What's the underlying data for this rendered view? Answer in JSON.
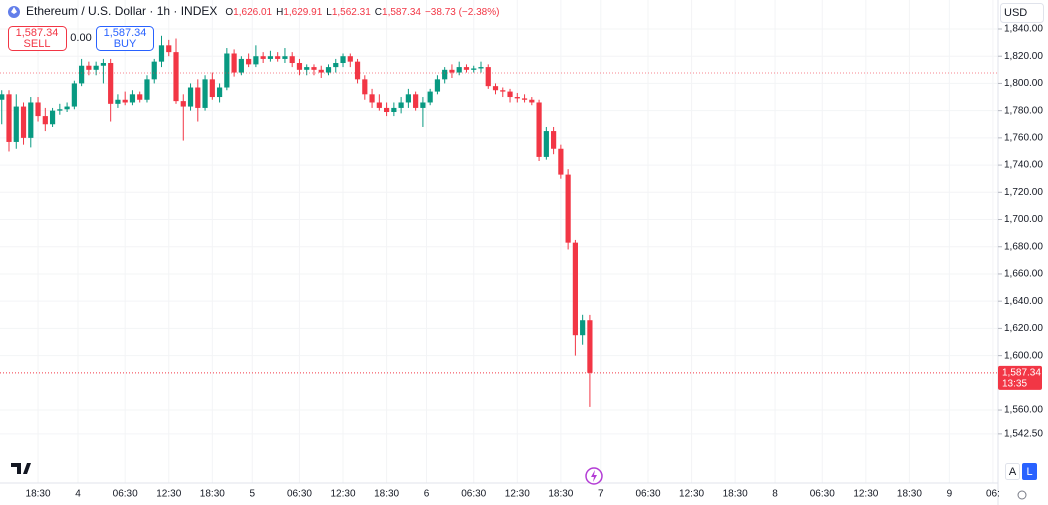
{
  "header": {
    "symbol": "Ethereum / U.S. Dollar · 1h · INDEX",
    "o_label": "O",
    "open": "1,626.01",
    "h_label": "H",
    "high": "1,629.91",
    "l_label": "L",
    "low": "1,562.31",
    "c_label": "C",
    "close": "1,587.34",
    "change": "−38.73 (−2.38%)"
  },
  "trade": {
    "sell_price": "1,587.34",
    "sell": "SELL",
    "spread": "0.00",
    "buy_price": "1,587.34",
    "buy": "BUY"
  },
  "currency": "USD",
  "scale_buttons": [
    "A",
    "L"
  ],
  "chart_data": {
    "type": "candlestick",
    "up_color": "#089981",
    "down_color": "#f23645",
    "grid": true,
    "open": [
      1788,
      1792,
      1757,
      1783,
      1760,
      1786,
      1776,
      1770,
      1780,
      1781,
      1783,
      1800,
      1813,
      1810,
      1813,
      1815,
      1785,
      1788,
      1786,
      1792,
      1788,
      1803,
      1816,
      1828,
      1823,
      1787,
      1783,
      1797,
      1782,
      1803,
      1790,
      1797,
      1822,
      1808,
      1818,
      1814,
      1820,
      1818,
      1820,
      1818,
      1820,
      1815,
      1810,
      1812,
      1810,
      1808,
      1812,
      1815,
      1820,
      1816,
      1803,
      1792,
      1786,
      1782,
      1779,
      1782,
      1786,
      1792,
      1782,
      1786,
      1794,
      1803,
      1810,
      1808,
      1812,
      1810,
      1811,
      1812,
      1798,
      1795,
      1794,
      1790,
      1789,
      1788,
      1786,
      1746,
      1765,
      1752,
      1733,
      1683,
      1615,
      1626.01
    ],
    "high": [
      1795,
      1795,
      1792,
      1786,
      1790,
      1790,
      1782,
      1782,
      1785,
      1786,
      1802,
      1818,
      1816,
      1816,
      1818,
      1818,
      1792,
      1794,
      1795,
      1794,
      1806,
      1818,
      1835,
      1832,
      1833,
      1792,
      1800,
      1803,
      1806,
      1808,
      1800,
      1826,
      1825,
      1820,
      1822,
      1828,
      1823,
      1824,
      1823,
      1826,
      1823,
      1818,
      1814,
      1814,
      1813,
      1814,
      1818,
      1822,
      1822,
      1818,
      1806,
      1796,
      1792,
      1786,
      1786,
      1790,
      1796,
      1794,
      1790,
      1796,
      1806,
      1812,
      1814,
      1816,
      1814,
      1813,
      1816,
      1814,
      1800,
      1797,
      1796,
      1793,
      1792,
      1790,
      1788,
      1768,
      1768,
      1755,
      1737,
      1685,
      1630,
      1629.91
    ],
    "low": [
      1770,
      1750,
      1752,
      1755,
      1753,
      1772,
      1765,
      1768,
      1777,
      1779,
      1781,
      1798,
      1806,
      1806,
      1800,
      1772,
      1782,
      1784,
      1784,
      1786,
      1786,
      1800,
      1812,
      1820,
      1785,
      1758,
      1780,
      1772,
      1780,
      1788,
      1786,
      1795,
      1805,
      1806,
      1812,
      1812,
      1815,
      1816,
      1816,
      1815,
      1812,
      1806,
      1806,
      1806,
      1804,
      1806,
      1808,
      1812,
      1812,
      1800,
      1788,
      1782,
      1780,
      1776,
      1776,
      1778,
      1782,
      1780,
      1768,
      1784,
      1792,
      1800,
      1804,
      1806,
      1808,
      1808,
      1808,
      1796,
      1792,
      1790,
      1786,
      1786,
      1786,
      1784,
      1743,
      1744,
      1748,
      1730,
      1678,
      1600,
      1608,
      1562.31
    ],
    "close": [
      1792,
      1757,
      1783,
      1760,
      1786,
      1776,
      1770,
      1780,
      1781,
      1783,
      1800,
      1813,
      1810,
      1813,
      1815,
      1785,
      1788,
      1786,
      1792,
      1788,
      1803,
      1816,
      1828,
      1823,
      1787,
      1783,
      1797,
      1782,
      1803,
      1790,
      1797,
      1822,
      1808,
      1818,
      1814,
      1820,
      1818,
      1820,
      1818,
      1820,
      1815,
      1810,
      1812,
      1810,
      1808,
      1812,
      1815,
      1820,
      1816,
      1803,
      1792,
      1786,
      1782,
      1779,
      1782,
      1786,
      1792,
      1782,
      1786,
      1794,
      1803,
      1810,
      1808,
      1812,
      1810,
      1811,
      1812,
      1798,
      1795,
      1794,
      1790,
      1789,
      1788,
      1786,
      1746,
      1765,
      1752,
      1733,
      1683,
      1615,
      1626.01,
      1587.34
    ],
    "xlim": [
      -0.24,
      137.2
    ],
    "xticks": [
      {
        "value": 5,
        "label": "18:30"
      },
      {
        "value": 10.5,
        "label": "4"
      },
      {
        "value": 17,
        "label": "06:30"
      },
      {
        "value": 23,
        "label": "12:30"
      },
      {
        "value": 29,
        "label": "18:30"
      },
      {
        "value": 34.5,
        "label": "5"
      },
      {
        "value": 41,
        "label": "06:30"
      },
      {
        "value": 47,
        "label": "12:30"
      },
      {
        "value": 53,
        "label": "18:30"
      },
      {
        "value": 58.5,
        "label": "6"
      },
      {
        "value": 65,
        "label": "06:30"
      },
      {
        "value": 71,
        "label": "12:30"
      },
      {
        "value": 77,
        "label": "18:30"
      },
      {
        "value": 82.5,
        "label": "7"
      },
      {
        "value": 89,
        "label": "06:30"
      },
      {
        "value": 95,
        "label": "12:30"
      },
      {
        "value": 101,
        "label": "18:30"
      },
      {
        "value": 106.5,
        "label": "8"
      },
      {
        "value": 113,
        "label": "06:30"
      },
      {
        "value": 119,
        "label": "12:30"
      },
      {
        "value": 125,
        "label": "18:30"
      },
      {
        "value": 130.5,
        "label": "9"
      },
      {
        "value": 136.5,
        "label": "06:"
      }
    ],
    "ylim": [
      1506.4,
      1861.3
    ],
    "yticks": [
      {
        "value": 1840,
        "label": "1,840.00"
      },
      {
        "value": 1820,
        "label": "1,820.00"
      },
      {
        "value": 1800,
        "label": "1,800.00"
      },
      {
        "value": 1780,
        "label": "1,780.00"
      },
      {
        "value": 1760,
        "label": "1,760.00"
      },
      {
        "value": 1740,
        "label": "1,740.00"
      },
      {
        "value": 1720,
        "label": "1,720.00"
      },
      {
        "value": 1700,
        "label": "1,700.00"
      },
      {
        "value": 1680,
        "label": "1,680.00"
      },
      {
        "value": 1660,
        "label": "1,660.00"
      },
      {
        "value": 1640,
        "label": "1,640.00"
      },
      {
        "value": 1620,
        "label": "1,620.00"
      },
      {
        "value": 1600,
        "label": "1,600.00"
      },
      {
        "value": 1560,
        "label": "1,560.00"
      },
      {
        "value": 1542.5,
        "label": "1,542.50"
      }
    ],
    "ref_line": {
      "value": 1807.7,
      "color": "#f23645"
    },
    "price_line": {
      "value": 1587.34,
      "label": "1,587.34",
      "countdown": "13:35",
      "color": "#f23645"
    }
  }
}
